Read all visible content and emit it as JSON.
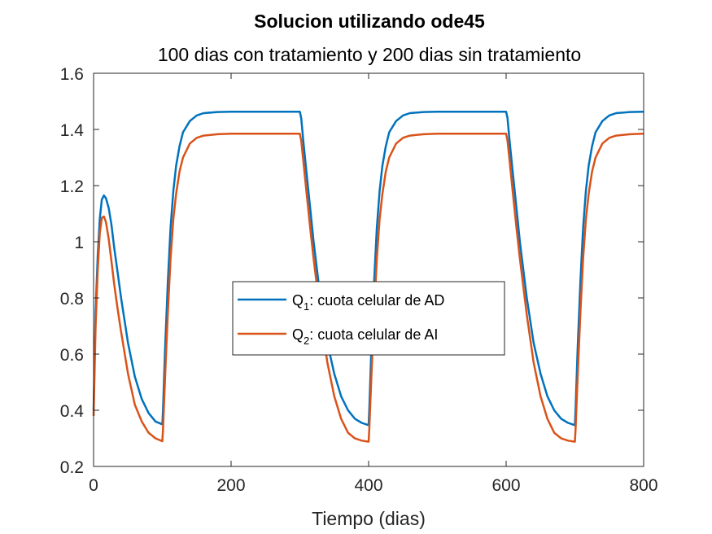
{
  "chart_data": {
    "type": "line",
    "title": "Solucion utilizando ode45",
    "subtitle": "100 dias con tratamiento y 200 dias sin tratamiento",
    "xlabel": "Tiempo (dias)",
    "ylabel": "",
    "xlim": [
      0,
      800
    ],
    "ylim": [
      0.2,
      1.6
    ],
    "xticks": [
      "0",
      "200",
      "400",
      "600",
      "800"
    ],
    "yticks": [
      "0.2",
      "0.4",
      "0.6",
      "0.8",
      "1",
      "1.2",
      "1.4",
      "1.6"
    ],
    "grid": false,
    "legend_position": "center",
    "series": [
      {
        "name": "Q1: cuota celular de AD",
        "label_main": "Q",
        "label_sub": "1",
        "label_rest": ": cuota celular de AD",
        "color": "#0072BD",
        "x": [
          0,
          3,
          6,
          9,
          12,
          15,
          18,
          22,
          26,
          30,
          35,
          40,
          50,
          60,
          70,
          80,
          90,
          100,
          101,
          104,
          108,
          112,
          116,
          120,
          125,
          130,
          140,
          150,
          160,
          180,
          200,
          250,
          300,
          302,
          305,
          310,
          315,
          320,
          330,
          340,
          350,
          360,
          370,
          380,
          390,
          400,
          401,
          404,
          408,
          412,
          416,
          420,
          425,
          430,
          440,
          450,
          460,
          480,
          500,
          550,
          600,
          602,
          605,
          610,
          615,
          620,
          630,
          640,
          650,
          660,
          670,
          680,
          690,
          700,
          701,
          704,
          708,
          712,
          716,
          720,
          725,
          730,
          740,
          750,
          760,
          780,
          800
        ],
        "values": [
          0.4,
          0.75,
          0.95,
          1.08,
          1.15,
          1.165,
          1.155,
          1.12,
          1.06,
          0.98,
          0.89,
          0.8,
          0.64,
          0.52,
          0.44,
          0.39,
          0.36,
          0.35,
          0.4,
          0.62,
          0.86,
          1.05,
          1.18,
          1.27,
          1.34,
          1.39,
          1.43,
          1.45,
          1.458,
          1.462,
          1.463,
          1.463,
          1.463,
          1.44,
          1.36,
          1.24,
          1.12,
          1.0,
          0.8,
          0.64,
          0.53,
          0.45,
          0.4,
          0.37,
          0.355,
          0.347,
          0.4,
          0.62,
          0.86,
          1.05,
          1.18,
          1.27,
          1.34,
          1.39,
          1.43,
          1.45,
          1.458,
          1.462,
          1.463,
          1.463,
          1.463,
          1.44,
          1.36,
          1.24,
          1.12,
          1.0,
          0.8,
          0.64,
          0.53,
          0.45,
          0.4,
          0.37,
          0.355,
          0.347,
          0.4,
          0.62,
          0.86,
          1.05,
          1.18,
          1.27,
          1.34,
          1.39,
          1.43,
          1.45,
          1.458,
          1.462,
          1.463
        ]
      },
      {
        "name": "Q2: cuota celular de AI",
        "label_main": "Q",
        "label_sub": "2",
        "label_rest": ": cuota celular de AI",
        "color": "#D95319",
        "x": [
          0,
          3,
          6,
          9,
          12,
          15,
          18,
          22,
          26,
          30,
          35,
          40,
          50,
          60,
          70,
          80,
          90,
          100,
          101,
          104,
          108,
          112,
          116,
          120,
          125,
          130,
          140,
          150,
          160,
          180,
          200,
          250,
          300,
          302,
          305,
          310,
          315,
          320,
          330,
          340,
          350,
          360,
          370,
          380,
          390,
          400,
          401,
          404,
          408,
          412,
          416,
          420,
          425,
          430,
          440,
          450,
          460,
          480,
          500,
          550,
          600,
          602,
          605,
          610,
          615,
          620,
          630,
          640,
          650,
          660,
          670,
          680,
          690,
          700,
          701,
          704,
          708,
          712,
          716,
          720,
          725,
          730,
          740,
          750,
          760,
          780,
          800
        ],
        "values": [
          0.38,
          0.7,
          0.9,
          1.03,
          1.085,
          1.09,
          1.07,
          1.01,
          0.93,
          0.85,
          0.76,
          0.68,
          0.53,
          0.42,
          0.36,
          0.32,
          0.3,
          0.29,
          0.33,
          0.52,
          0.75,
          0.94,
          1.08,
          1.17,
          1.25,
          1.3,
          1.35,
          1.37,
          1.378,
          1.383,
          1.385,
          1.385,
          1.385,
          1.36,
          1.29,
          1.17,
          1.05,
          0.94,
          0.74,
          0.57,
          0.45,
          0.37,
          0.32,
          0.3,
          0.292,
          0.288,
          0.33,
          0.52,
          0.75,
          0.94,
          1.08,
          1.17,
          1.25,
          1.3,
          1.35,
          1.37,
          1.378,
          1.383,
          1.385,
          1.385,
          1.385,
          1.36,
          1.29,
          1.17,
          1.05,
          0.94,
          0.74,
          0.57,
          0.45,
          0.37,
          0.32,
          0.3,
          0.292,
          0.288,
          0.33,
          0.52,
          0.75,
          0.94,
          1.08,
          1.17,
          1.25,
          1.3,
          1.35,
          1.37,
          1.378,
          1.383,
          1.385
        ]
      }
    ]
  }
}
